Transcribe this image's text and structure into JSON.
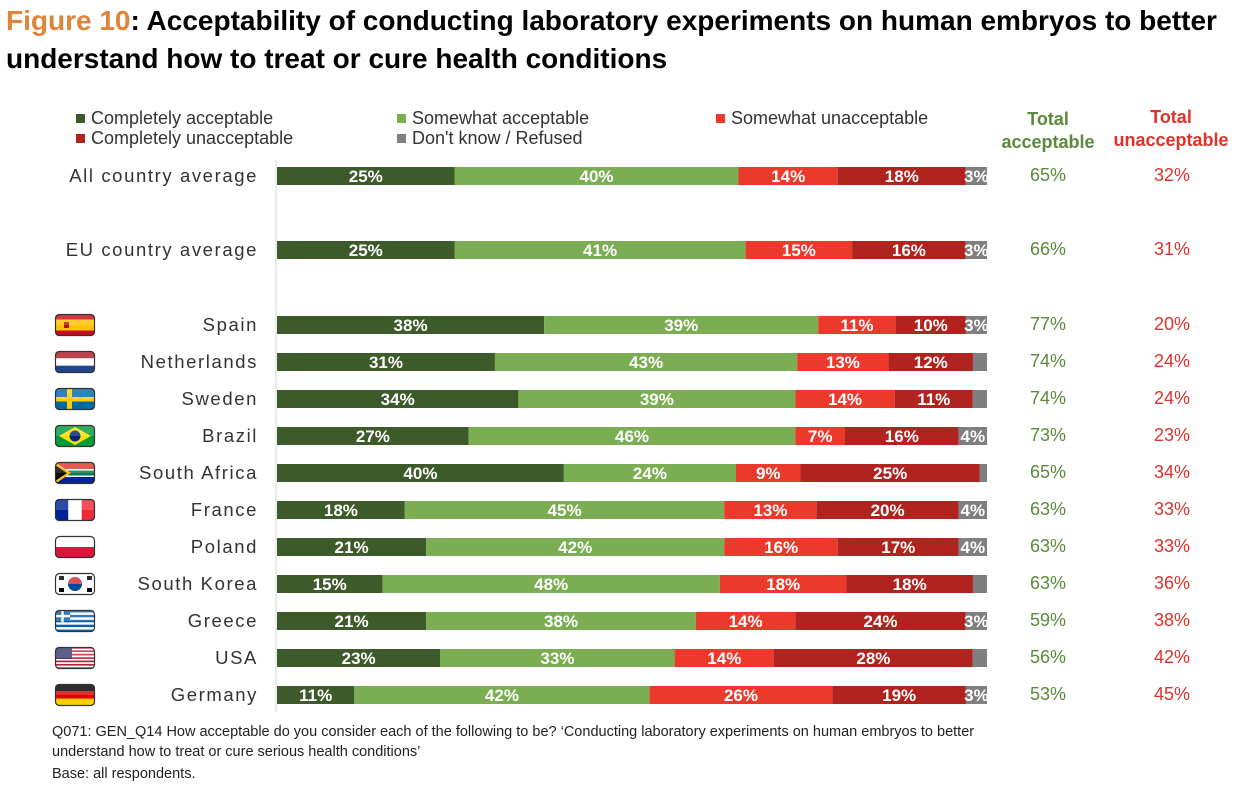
{
  "title": {
    "figure_label": "Figure 10",
    "text": ": Acceptability of conducting laboratory experiments on human embryos to better understand how to treat or cure health conditions"
  },
  "colors": {
    "completely_acceptable": "#3D5A2A",
    "somewhat_acceptable": "#7BAE52",
    "somewhat_unacceptable": "#EB3A2C",
    "completely_unacceptable": "#B1231E",
    "dont_know": "#7F7F7F",
    "total_acceptable_text": "#5A8A3A",
    "total_unacceptable_text": "#E0312A",
    "title_accent": "#E0843A"
  },
  "columns": {
    "total_acceptable": "Total acceptable",
    "total_unacceptable": "Total unacceptable"
  },
  "chart_data": {
    "type": "bar",
    "orientation": "horizontal",
    "stacked": true,
    "legend_position": "top",
    "grid": false,
    "categories": [
      "All country average",
      "EU country average",
      "Spain",
      "Netherlands",
      "Sweden",
      "Brazil",
      "South Africa",
      "France",
      "Poland",
      "South Korea",
      "Greece",
      "USA",
      "Germany"
    ],
    "flags": [
      "",
      "",
      "spain-flag",
      "netherlands-flag",
      "sweden-flag",
      "brazil-flag",
      "south-africa-flag",
      "france-flag",
      "poland-flag",
      "south-korea-flag",
      "greece-flag",
      "usa-flag",
      "germany-flag"
    ],
    "series": [
      {
        "name": "Completely acceptable",
        "values": [
          25,
          25,
          38,
          31,
          34,
          27,
          40,
          18,
          21,
          15,
          21,
          23,
          11
        ],
        "labels": [
          "25%",
          "25%",
          "38%",
          "31%",
          "34%",
          "27%",
          "40%",
          "18%",
          "21%",
          "15%",
          "21%",
          "23%",
          "11%"
        ]
      },
      {
        "name": "Somewhat acceptable",
        "values": [
          40,
          41,
          39,
          43,
          39,
          46,
          24,
          45,
          42,
          48,
          38,
          33,
          42
        ],
        "labels": [
          "40%",
          "41%",
          "39%",
          "43%",
          "39%",
          "46%",
          "24%",
          "45%",
          "42%",
          "48%",
          "38%",
          "33%",
          "42%"
        ]
      },
      {
        "name": "Somewhat unacceptable",
        "values": [
          14,
          15,
          11,
          13,
          14,
          7,
          9,
          13,
          16,
          18,
          14,
          14,
          26
        ],
        "labels": [
          "14%",
          "15%",
          "11%",
          "13%",
          "14%",
          "7%",
          "9%",
          "13%",
          "16%",
          "18%",
          "14%",
          "14%",
          "26%"
        ]
      },
      {
        "name": "Completely unacceptable",
        "values": [
          18,
          16,
          10,
          12,
          11,
          16,
          25,
          20,
          17,
          18,
          24,
          28,
          19
        ],
        "labels": [
          "18%",
          "16%",
          "10%",
          "12%",
          "11%",
          "16%",
          "25%",
          "20%",
          "17%",
          "18%",
          "24%",
          "28%",
          "19%"
        ]
      },
      {
        "name": "Don't know / Refused",
        "values": [
          3,
          3,
          3,
          2,
          2,
          4,
          1,
          4,
          4,
          2,
          3,
          2,
          3
        ],
        "labels": [
          "3%",
          "3%",
          "3%",
          "",
          "",
          "4%",
          "",
          "4%",
          "4%",
          "",
          "3%",
          "",
          "3%"
        ]
      }
    ],
    "total_acceptable": [
      "65%",
      "66%",
      "77%",
      "74%",
      "74%",
      "73%",
      "65%",
      "63%",
      "63%",
      "63%",
      "59%",
      "56%",
      "53%"
    ],
    "total_unacceptable": [
      "32%",
      "31%",
      "20%",
      "24%",
      "24%",
      "23%",
      "34%",
      "33%",
      "33%",
      "36%",
      "38%",
      "42%",
      "45%"
    ]
  },
  "footnote": {
    "line1": "Q071: GEN_Q14 How acceptable do you consider each of the following to be? ‘Conducting laboratory experiments on human embryos to better",
    "line2": "understand how to treat or cure serious health conditions’",
    "line3": "Base: all respondents."
  }
}
